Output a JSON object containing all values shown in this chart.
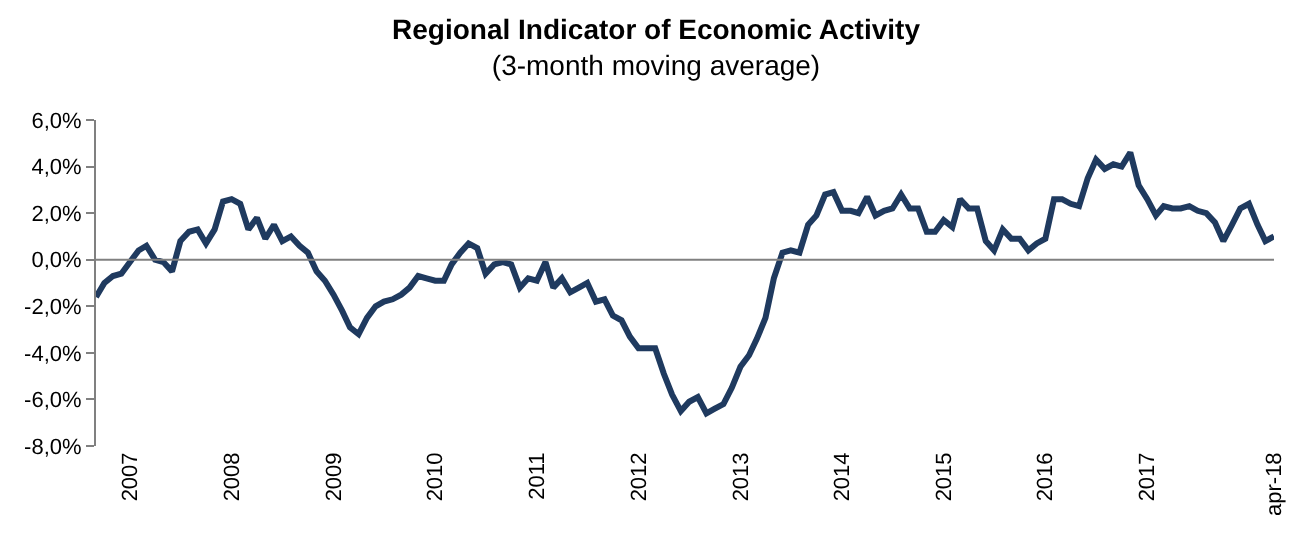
{
  "chart_data": {
    "type": "line",
    "title": "Regional Indicator of Economic Activity",
    "subtitle": "(3-month moving average)",
    "x": [
      "2006-09",
      "2006-10",
      "2006-11",
      "2006-12",
      "2007-01",
      "2007-02",
      "2007-03",
      "2007-04",
      "2007-05",
      "2007-06",
      "2007-07",
      "2007-08",
      "2007-09",
      "2007-10",
      "2007-11",
      "2007-12",
      "2008-01",
      "2008-02",
      "2008-03",
      "2008-04",
      "2008-05",
      "2008-06",
      "2008-07",
      "2008-08",
      "2008-09",
      "2008-10",
      "2008-11",
      "2008-12",
      "2009-01",
      "2009-02",
      "2009-03",
      "2009-04",
      "2009-05",
      "2009-06",
      "2009-07",
      "2009-08",
      "2009-09",
      "2009-10",
      "2009-11",
      "2009-12",
      "2010-01",
      "2010-02",
      "2010-03",
      "2010-04",
      "2010-05",
      "2010-06",
      "2010-07",
      "2010-08",
      "2010-09",
      "2010-10",
      "2010-11",
      "2010-12",
      "2011-01",
      "2011-02",
      "2011-03",
      "2011-04",
      "2011-05",
      "2011-06",
      "2011-07",
      "2011-08",
      "2011-09",
      "2011-10",
      "2011-11",
      "2011-12",
      "2012-01",
      "2012-02",
      "2012-03",
      "2012-04",
      "2012-05",
      "2012-06",
      "2012-07",
      "2012-08",
      "2012-09",
      "2012-10",
      "2012-11",
      "2012-12",
      "2013-01",
      "2013-02",
      "2013-03",
      "2013-04",
      "2013-05",
      "2013-06",
      "2013-07",
      "2013-08",
      "2013-09",
      "2013-10",
      "2013-11",
      "2013-12",
      "2014-01",
      "2014-02",
      "2014-03",
      "2014-04",
      "2014-05",
      "2014-06",
      "2014-07",
      "2014-08",
      "2014-09",
      "2014-10",
      "2014-11",
      "2014-12",
      "2015-01",
      "2015-02",
      "2015-03",
      "2015-04",
      "2015-05",
      "2015-06",
      "2015-07",
      "2015-08",
      "2015-09",
      "2015-10",
      "2015-11",
      "2015-12",
      "2016-01",
      "2016-02",
      "2016-03",
      "2016-04",
      "2016-05",
      "2016-06",
      "2016-07",
      "2016-08",
      "2016-09",
      "2016-10",
      "2016-11",
      "2016-12",
      "2017-01",
      "2017-02",
      "2017-03",
      "2017-04",
      "2017-05",
      "2017-06",
      "2017-07",
      "2017-08",
      "2017-09",
      "2017-10",
      "2017-11",
      "2017-12",
      "2018-01",
      "2018-02",
      "2018-03",
      "2018-04"
    ],
    "series": [
      {
        "color": "#1f3a5f",
        "values": [
          -1.6,
          -1.0,
          -0.7,
          -0.6,
          -0.1,
          0.4,
          0.6,
          0.0,
          -0.1,
          -0.5,
          0.8,
          1.2,
          1.3,
          0.7,
          1.3,
          2.5,
          2.6,
          2.4,
          1.3,
          1.8,
          0.9,
          1.5,
          0.8,
          1.0,
          0.6,
          0.3,
          -0.5,
          -0.9,
          -1.5,
          -2.2,
          -2.9,
          -3.2,
          -2.5,
          -2.0,
          -1.8,
          -1.7,
          -1.5,
          -1.2,
          -0.7,
          -0.8,
          -0.9,
          -0.9,
          -0.2,
          0.3,
          0.7,
          0.5,
          -0.6,
          -0.2,
          -0.1,
          -0.2,
          -1.2,
          -0.8,
          -0.9,
          -0.1,
          -1.2,
          -0.8,
          -1.4,
          -1.2,
          -1.0,
          -1.8,
          -1.7,
          -2.4,
          -2.6,
          -3.3,
          -3.8,
          -3.8,
          -3.8,
          -4.9,
          -5.8,
          -6.5,
          -6.1,
          -5.9,
          -6.6,
          -6.4,
          -6.2,
          -5.5,
          -4.6,
          -4.1,
          -3.4,
          -2.5,
          -0.8,
          0.3,
          0.4,
          0.3,
          1.5,
          1.9,
          2.8,
          2.9,
          2.1,
          2.1,
          2.0,
          2.7,
          1.9,
          2.1,
          2.2,
          2.8,
          2.2,
          2.2,
          1.2,
          1.2,
          1.7,
          1.4,
          2.6,
          2.2,
          2.2,
          0.8,
          0.4,
          1.3,
          0.9,
          0.9,
          0.4,
          0.7,
          0.9,
          2.6,
          2.6,
          2.4,
          2.3,
          3.5,
          4.3,
          3.9,
          4.1,
          4.0,
          4.6,
          3.2,
          2.6,
          1.9,
          2.3,
          2.2,
          2.2,
          2.3,
          2.1,
          2.0,
          1.6,
          0.8,
          1.5,
          2.2,
          2.4,
          1.5,
          0.8,
          1.0
        ]
      }
    ],
    "xlim": [
      "2006-09",
      "2018-04"
    ],
    "xticks": [
      {
        "value": "2007-01",
        "label": "2007"
      },
      {
        "value": "2008-01",
        "label": "2008"
      },
      {
        "value": "2009-01",
        "label": "2009"
      },
      {
        "value": "2010-01",
        "label": "2010"
      },
      {
        "value": "2011-01",
        "label": "2011"
      },
      {
        "value": "2012-01",
        "label": "2012"
      },
      {
        "value": "2013-01",
        "label": "2013"
      },
      {
        "value": "2014-01",
        "label": "2014"
      },
      {
        "value": "2015-01",
        "label": "2015"
      },
      {
        "value": "2016-01",
        "label": "2016"
      },
      {
        "value": "2017-01",
        "label": "2017"
      },
      {
        "value": "2018-04",
        "label": "apr-18"
      }
    ],
    "ylim": [
      -8,
      6
    ],
    "yticks": [
      {
        "value": -8,
        "label": "-8,0%"
      },
      {
        "value": -6,
        "label": "-6,0%"
      },
      {
        "value": -4,
        "label": "-4,0%"
      },
      {
        "value": -2,
        "label": "-2,0%"
      },
      {
        "value": 0,
        "label": "0,0%"
      },
      {
        "value": 2,
        "label": "2,0%"
      },
      {
        "value": 4,
        "label": "4,0%"
      },
      {
        "value": 6,
        "label": "6,0%"
      }
    ],
    "ref_lines": [
      {
        "axis": "y",
        "value": 0,
        "color": "#808080"
      }
    ],
    "marker": "none",
    "line_style": "solid"
  }
}
